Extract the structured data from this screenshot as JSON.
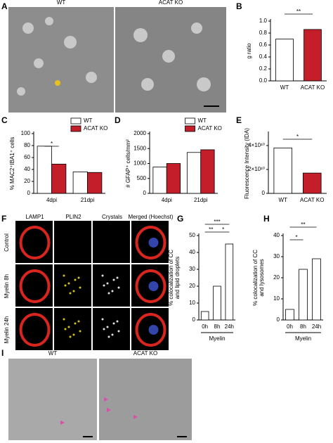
{
  "panel_labels": [
    "A",
    "B",
    "C",
    "D",
    "E",
    "F",
    "G",
    "H",
    "I"
  ],
  "panel_a": {
    "labels": [
      "WT",
      "ACAT KO"
    ]
  },
  "panel_f": {
    "columns": [
      "LAMP1",
      "PLIN2",
      "Crystals",
      "Merged (Hoechst)"
    ],
    "rows": [
      "Control",
      "Myelin 8h",
      "Myelin 24h"
    ]
  },
  "panel_i": {
    "labels": [
      "WT",
      "ACAT KO"
    ]
  },
  "chart_data": [
    {
      "type": "bar",
      "y_label": [
        "g ratio"
      ],
      "categories": [
        "WT",
        "ACAT KO"
      ],
      "values": [
        0.7,
        0.86
      ],
      "colors": [
        "#ffffff",
        "#c41e2a"
      ],
      "ylim": [
        0,
        1
      ],
      "yticks": [
        {
          "value": 0,
          "label": "0.0"
        },
        0.2,
        0.4,
        0.6,
        0.8,
        {
          "value": 1,
          "label": "1.0"
        }
      ],
      "significance": [
        "**"
      ]
    },
    {
      "type": "bar",
      "y_label": [
        "% MAC2⁺IBA1⁺ cells"
      ],
      "categories": [
        "4dpi",
        "21dpi"
      ],
      "series": [
        {
          "name": "WT",
          "color": "#ffffff",
          "values": [
            79,
            36
          ]
        },
        {
          "name": "ACAT KO",
          "color": "#c41e2a",
          "values": [
            49,
            35
          ]
        }
      ],
      "ylim": [
        0,
        100
      ],
      "yticks": [
        0,
        20,
        40,
        60,
        80,
        100
      ],
      "significance": [
        "*"
      ]
    },
    {
      "type": "bar",
      "y_label": [
        "# GFAP⁺ cells/mm²"
      ],
      "categories": [
        "4dpi",
        "21dpi"
      ],
      "series": [
        {
          "name": "WT",
          "color": "#ffffff",
          "values": [
            880,
            1370
          ]
        },
        {
          "name": "ACAT KO",
          "color": "#c41e2a",
          "values": [
            1000,
            1460
          ]
        }
      ],
      "ylim": [
        0,
        2000
      ],
      "yticks": [
        0,
        500,
        1000,
        1500,
        2000
      ],
      "significance": []
    },
    {
      "type": "bar",
      "y_label": [
        "Fluorescence Intensity (IDA)"
      ],
      "categories": [
        "WT",
        "ACAT KO"
      ],
      "values": [
        38000000000,
        17000000000
      ],
      "colors": [
        "#ffffff",
        "#c41e2a"
      ],
      "ylim": [
        0,
        50000000000
      ],
      "yticks": [
        0,
        {
          "value": 20000000000,
          "label": "2×10¹⁰"
        },
        {
          "value": 40000000000,
          "label": "4×10¹⁰"
        }
      ],
      "significance": [
        "*"
      ]
    },
    {
      "type": "bar",
      "y_label": [
        "% colocalization of CC",
        "and lipid droplets"
      ],
      "x_label": "Myelin",
      "categories": [
        "0h",
        "8h",
        "24h"
      ],
      "values": [
        5,
        20,
        45
      ],
      "colors": [
        "#ffffff",
        "#ffffff",
        "#ffffff"
      ],
      "ylim": [
        0,
        50
      ],
      "yticks": [
        0,
        10,
        20,
        30,
        40,
        50
      ],
      "significance": [
        "***",
        "**",
        "*"
      ]
    },
    {
      "type": "bar",
      "y_label": [
        "% colocalization of CC",
        "and lysosomes"
      ],
      "x_label": "Myelin",
      "categories": [
        "0h",
        "8h",
        "24h"
      ],
      "values": [
        5,
        24,
        29
      ],
      "colors": [
        "#ffffff",
        "#ffffff",
        "#ffffff"
      ],
      "ylim": [
        0,
        40
      ],
      "yticks": [
        0,
        10,
        20,
        30,
        40
      ],
      "significance": [
        "**",
        "*"
      ]
    }
  ]
}
